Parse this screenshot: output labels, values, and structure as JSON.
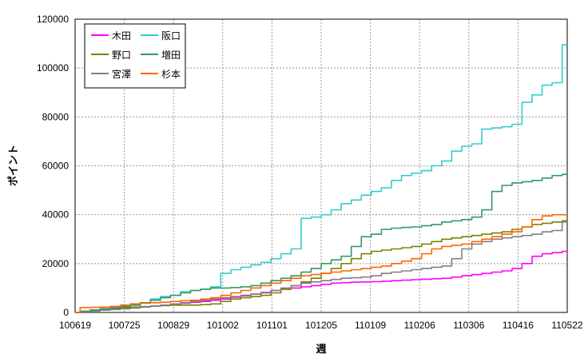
{
  "chart_data": {
    "type": "line",
    "xlabel": "週",
    "ylabel": "ポイント",
    "x_tick_labels": [
      "100619",
      "100725",
      "100829",
      "101002",
      "101101",
      "101205",
      "110109",
      "110206",
      "110306",
      "110416",
      "110522"
    ],
    "y_tick_labels": [
      "0",
      "20000",
      "40000",
      "60000",
      "80000",
      "100000",
      "120000"
    ],
    "ylim": [
      0,
      120000
    ],
    "x_count": 50,
    "grid": true,
    "legend_position": "top-left",
    "series": [
      {
        "name": "木田",
        "color": "#ff00ff",
        "values": [
          0,
          500,
          1000,
          1200,
          1500,
          1800,
          2000,
          2300,
          2600,
          3000,
          3500,
          3800,
          4200,
          4500,
          5000,
          5500,
          6200,
          6800,
          7500,
          8200,
          9000,
          9500,
          10000,
          10500,
          11000,
          11500,
          12000,
          12200,
          12400,
          12500,
          12600,
          12800,
          13000,
          13200,
          13400,
          13600,
          13800,
          14000,
          14500,
          15000,
          15500,
          16000,
          16500,
          17000,
          18000,
          20000,
          23000,
          24000,
          24500,
          25000
        ]
      },
      {
        "name": "阪口",
        "color": "#33cccc",
        "values": [
          0,
          500,
          1000,
          1500,
          2000,
          2500,
          3000,
          4000,
          5500,
          6500,
          7000,
          8500,
          9000,
          9500,
          10500,
          16000,
          17500,
          18500,
          19500,
          20500,
          22000,
          24000,
          26000,
          38500,
          39000,
          40000,
          42000,
          44500,
          46000,
          48000,
          49500,
          51000,
          54000,
          56000,
          57000,
          58000,
          60000,
          62000,
          66000,
          68000,
          69000,
          75000,
          75500,
          76000,
          77000,
          86000,
          89000,
          93000,
          94000,
          109500
        ]
      },
      {
        "name": "野口",
        "color": "#808000",
        "values": [
          0,
          500,
          1000,
          1500,
          1800,
          2000,
          2200,
          2400,
          2600,
          2800,
          3000,
          3000,
          3000,
          3200,
          3500,
          4500,
          5500,
          6000,
          6500,
          7000,
          8000,
          9500,
          11000,
          12500,
          14000,
          16000,
          18000,
          20000,
          22000,
          24000,
          25000,
          25500,
          26000,
          26500,
          27000,
          28000,
          29000,
          30000,
          30500,
          31000,
          31500,
          32000,
          32500,
          33000,
          34000,
          35000,
          36000,
          36500,
          37000,
          37500
        ]
      },
      {
        "name": "増田",
        "color": "#339966",
        "values": [
          0,
          500,
          1000,
          1500,
          2000,
          2500,
          3000,
          4000,
          5000,
          6000,
          7000,
          8000,
          9000,
          9500,
          10000,
          10000,
          10200,
          10500,
          11000,
          12000,
          13000,
          14000,
          15000,
          16500,
          18000,
          20000,
          21500,
          23000,
          27000,
          31000,
          32000,
          34000,
          34500,
          34800,
          35000,
          35500,
          36000,
          37000,
          37500,
          38000,
          39000,
          42000,
          49500,
          52000,
          53000,
          53500,
          54000,
          55000,
          56000,
          56500
        ]
      },
      {
        "name": "宮澤",
        "color": "#808080",
        "values": [
          0,
          300,
          600,
          900,
          1200,
          1500,
          1800,
          2200,
          2600,
          3000,
          3500,
          4000,
          4500,
          5000,
          5500,
          6000,
          6500,
          7000,
          7500,
          8000,
          9000,
          10000,
          11000,
          12000,
          12500,
          13000,
          13500,
          14000,
          14200,
          14500,
          15000,
          16000,
          16500,
          17000,
          17500,
          18000,
          18500,
          19000,
          22000,
          26000,
          28000,
          29000,
          30000,
          30500,
          31000,
          31500,
          32000,
          33000,
          33500,
          37000
        ]
      },
      {
        "name": "杉本",
        "color": "#ff6600",
        "values": [
          0,
          2000,
          2100,
          2200,
          2500,
          3000,
          3500,
          3800,
          4000,
          4200,
          4500,
          4800,
          5000,
          5500,
          6000,
          7000,
          8000,
          9000,
          10000,
          11000,
          12000,
          13000,
          14000,
          15000,
          15500,
          16000,
          16500,
          17000,
          17500,
          18000,
          18500,
          19000,
          20000,
          21000,
          22000,
          24000,
          26000,
          27000,
          27500,
          28000,
          29000,
          30000,
          31000,
          32000,
          33000,
          35000,
          38000,
          39500,
          40000,
          40000
        ]
      }
    ]
  }
}
